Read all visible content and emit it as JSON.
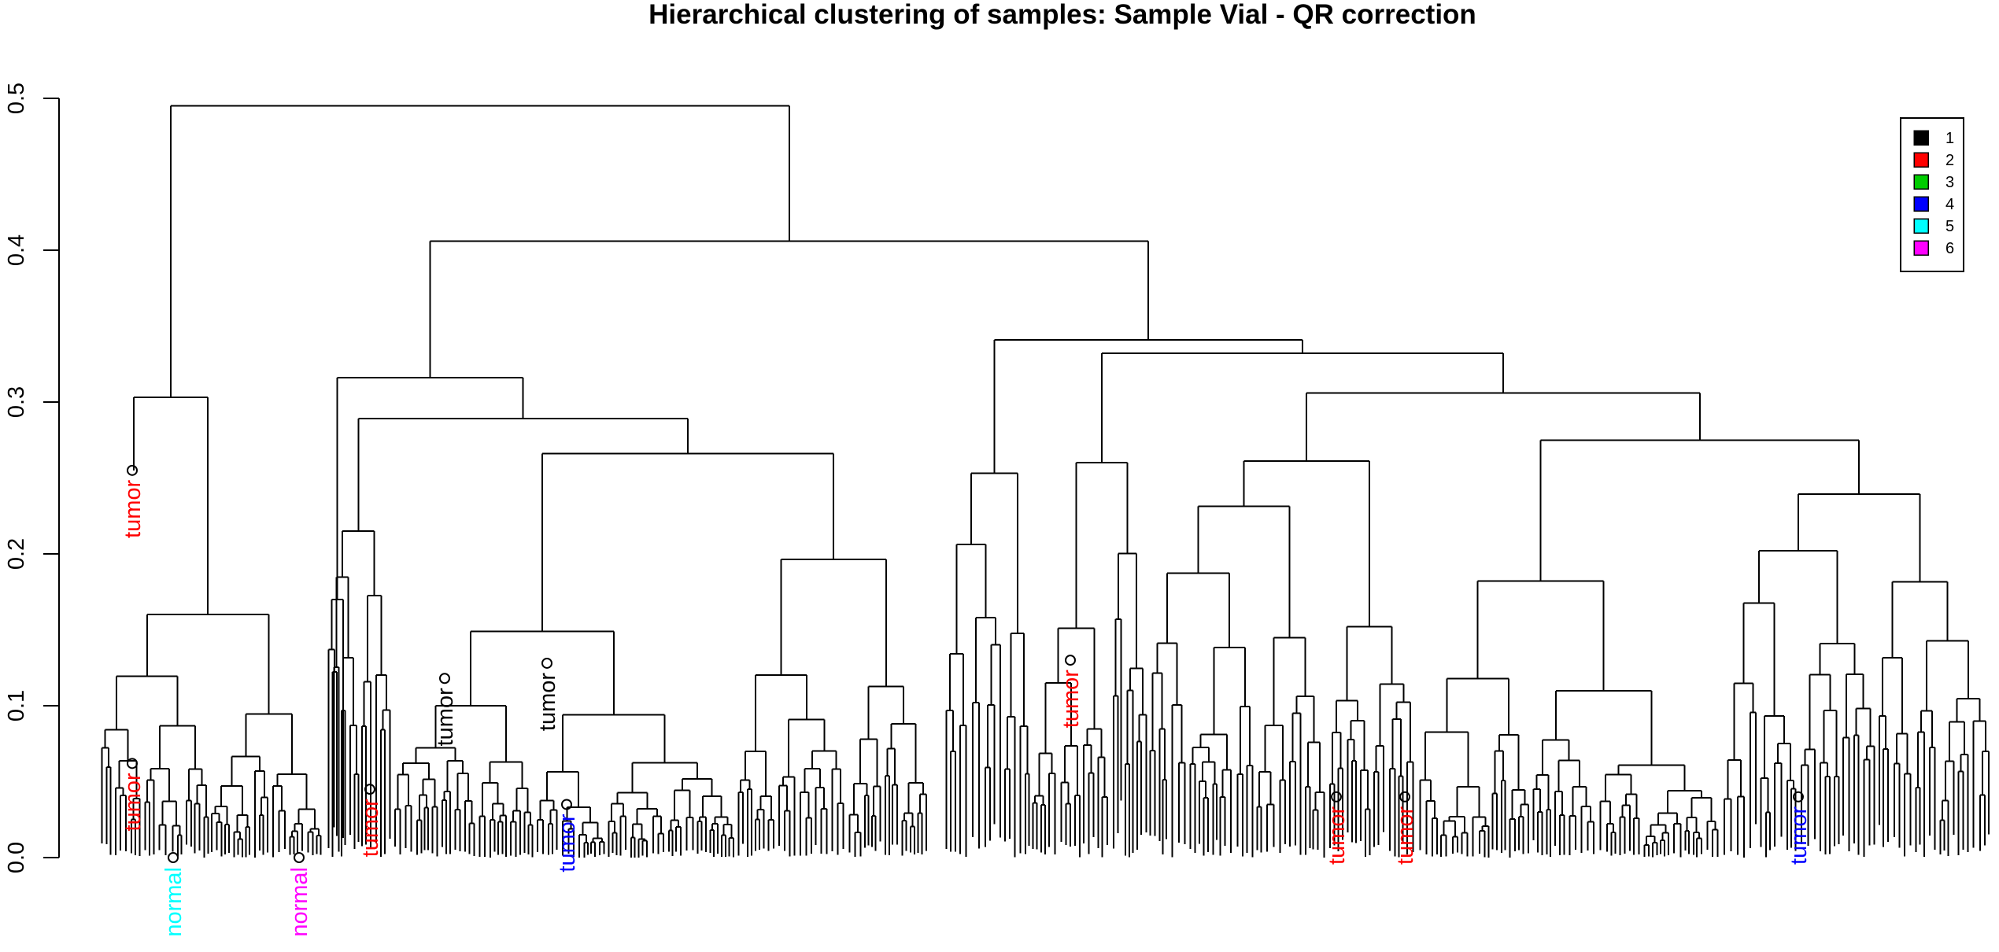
{
  "chart_data": {
    "type": "dendrogram",
    "title": "Hierarchical clustering of samples: Sample Vial - QR correction",
    "xlabel": "",
    "ylabel": "",
    "ylim": [
      0,
      0.5
    ],
    "y_ticks": [
      {
        "value": 0.0,
        "label": "0.0"
      },
      {
        "value": 0.1,
        "label": "0.1"
      },
      {
        "value": 0.2,
        "label": "0.2"
      },
      {
        "value": 0.3,
        "label": "0.3"
      },
      {
        "value": 0.4,
        "label": "0.4"
      },
      {
        "value": 0.5,
        "label": "0.5"
      }
    ],
    "legend": {
      "placement": "top-right",
      "entries": [
        {
          "label": "1",
          "color": "#000000"
        },
        {
          "label": "2",
          "color": "#ff0000"
        },
        {
          "label": "3",
          "color": "#00cd00"
        },
        {
          "label": "4",
          "color": "#0000ff"
        },
        {
          "label": "5",
          "color": "#00ffff"
        },
        {
          "label": "6",
          "color": "#ff00ff"
        }
      ]
    },
    "merge_heights": {
      "root": 0.495,
      "left_outlier_group": 0.303,
      "right_main": 0.406,
      "left_subtree": 0.316,
      "right_subtree": 0.341,
      "mid_a": 0.289,
      "mid_b": 0.332,
      "mid_c": 0.306,
      "mid_d": 0.275,
      "mid_e": 0.266
    },
    "leaves": [
      {
        "label": "tumor",
        "group": 2,
        "height": 0.255
      },
      {
        "label": "tumor",
        "group": 2,
        "height": 0.062
      },
      {
        "label": "tumor",
        "group": 1,
        "height": 0.128
      },
      {
        "label": "tumor",
        "group": 1,
        "height": 0.118
      },
      {
        "label": "tumor",
        "group": 2,
        "height": 0.045
      },
      {
        "label": "tumor",
        "group": 4,
        "height": 0.035
      },
      {
        "label": "tumor",
        "group": 2,
        "height": 0.13
      },
      {
        "label": "tumor",
        "group": 2,
        "height": 0.04
      },
      {
        "label": "tumor",
        "group": 2,
        "height": 0.04
      },
      {
        "label": "tumor",
        "group": 4,
        "height": 0.04
      },
      {
        "label": "normal",
        "group": 5,
        "height": 0.0
      },
      {
        "label": "normal",
        "group": 6,
        "height": 0.0
      }
    ]
  }
}
